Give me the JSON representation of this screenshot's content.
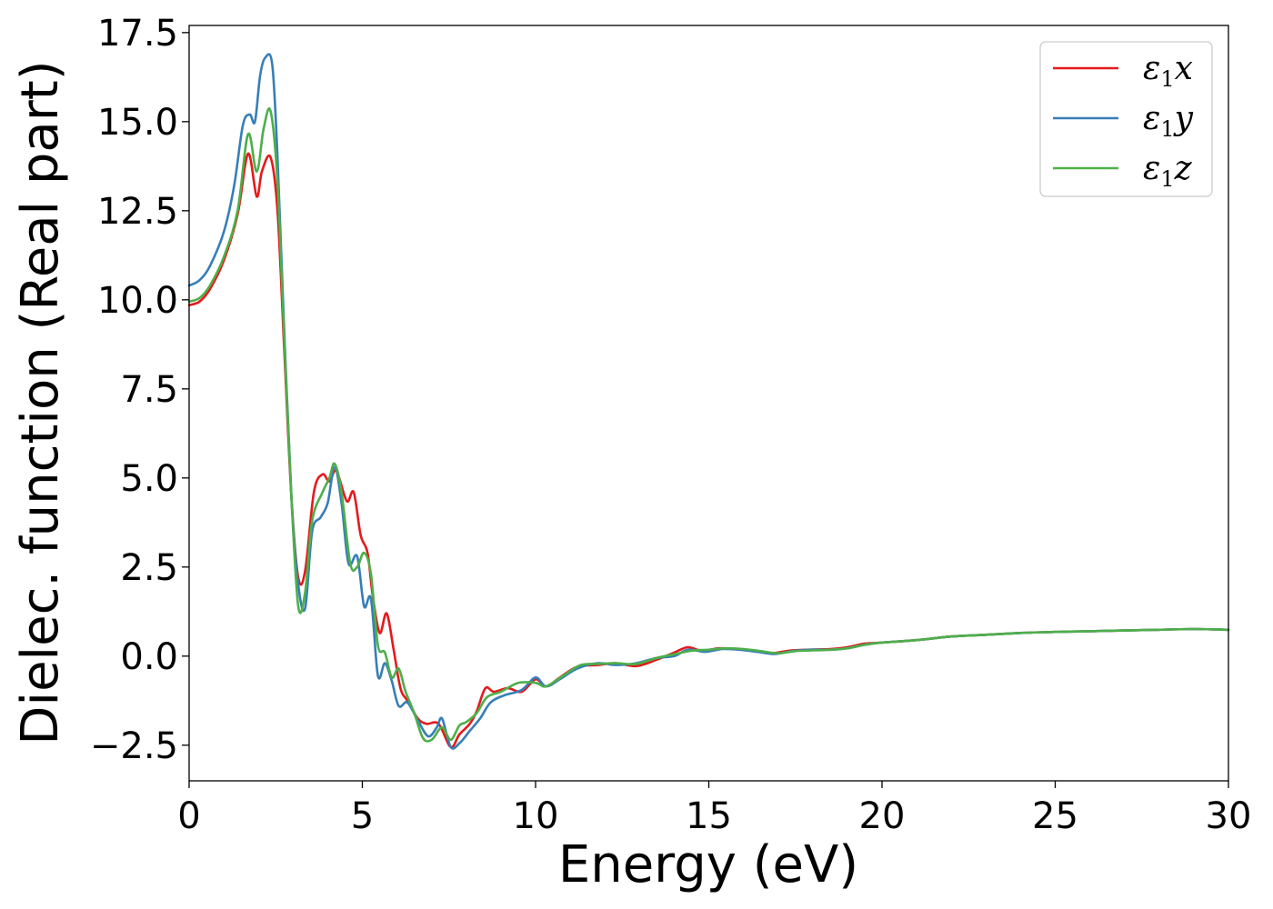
{
  "chart_data": {
    "type": "line",
    "title": "",
    "xlabel": "Energy (eV)",
    "ylabel": "Dielec. function (Real part)",
    "xlim": [
      0,
      30
    ],
    "ylim": [
      -3.5,
      17.7
    ],
    "xticks": [
      0,
      5,
      10,
      15,
      20,
      25,
      30
    ],
    "xtick_labels": [
      "0",
      "5",
      "10",
      "15",
      "20",
      "25",
      "30"
    ],
    "yticks": [
      -2.5,
      0.0,
      2.5,
      5.0,
      7.5,
      10.0,
      12.5,
      15.0,
      17.5
    ],
    "ytick_labels": [
      "−2.5",
      "0.0",
      "2.5",
      "5.0",
      "7.5",
      "10.0",
      "12.5",
      "15.0",
      "17.5"
    ],
    "grid": false,
    "legend": "top-right",
    "series": [
      {
        "name": "ε1x",
        "legend_base": "ε",
        "legend_sub": "1",
        "legend_tail": "x",
        "color": "#e41a1c",
        "points": [
          [
            0,
            9.85
          ],
          [
            0.3,
            9.95
          ],
          [
            0.6,
            10.3
          ],
          [
            1.0,
            11.1
          ],
          [
            1.4,
            12.4
          ],
          [
            1.7,
            14.1
          ],
          [
            1.95,
            12.9
          ],
          [
            2.1,
            13.6
          ],
          [
            2.35,
            14.0
          ],
          [
            2.55,
            12.5
          ],
          [
            2.75,
            8.5
          ],
          [
            2.95,
            4.5
          ],
          [
            3.15,
            2.2
          ],
          [
            3.35,
            2.4
          ],
          [
            3.6,
            4.6
          ],
          [
            3.85,
            5.1
          ],
          [
            4.05,
            4.9
          ],
          [
            4.25,
            5.2
          ],
          [
            4.55,
            4.35
          ],
          [
            4.75,
            4.6
          ],
          [
            4.95,
            3.4
          ],
          [
            5.15,
            2.9
          ],
          [
            5.3,
            1.7
          ],
          [
            5.5,
            0.65
          ],
          [
            5.7,
            1.2
          ],
          [
            5.9,
            0.2
          ],
          [
            6.1,
            -0.9
          ],
          [
            6.3,
            -1.25
          ],
          [
            6.6,
            -1.75
          ],
          [
            6.85,
            -1.9
          ],
          [
            7.2,
            -1.9
          ],
          [
            7.55,
            -2.55
          ],
          [
            7.8,
            -2.2
          ],
          [
            8.1,
            -1.9
          ],
          [
            8.3,
            -1.55
          ],
          [
            8.55,
            -0.9
          ],
          [
            8.8,
            -1.0
          ],
          [
            9.2,
            -0.9
          ],
          [
            9.6,
            -1.0
          ],
          [
            10.0,
            -0.65
          ],
          [
            10.3,
            -0.85
          ],
          [
            10.7,
            -0.6
          ],
          [
            11.2,
            -0.3
          ],
          [
            11.8,
            -0.25
          ],
          [
            12.3,
            -0.2
          ],
          [
            12.9,
            -0.28
          ],
          [
            13.5,
            -0.1
          ],
          [
            14.0,
            0.1
          ],
          [
            14.4,
            0.25
          ],
          [
            14.8,
            0.15
          ],
          [
            15.3,
            0.22
          ],
          [
            15.8,
            0.2
          ],
          [
            16.3,
            0.15
          ],
          [
            16.8,
            0.08
          ],
          [
            17.3,
            0.15
          ],
          [
            17.8,
            0.18
          ],
          [
            18.5,
            0.2
          ],
          [
            19.0,
            0.25
          ],
          [
            19.5,
            0.35
          ],
          [
            20.0,
            0.38
          ],
          [
            21.0,
            0.45
          ],
          [
            22.0,
            0.55
          ],
          [
            23.0,
            0.6
          ],
          [
            24.0,
            0.65
          ],
          [
            25.0,
            0.68
          ],
          [
            26.0,
            0.7
          ],
          [
            27.0,
            0.72
          ],
          [
            28.0,
            0.74
          ],
          [
            29.0,
            0.76
          ],
          [
            30.0,
            0.74
          ]
        ]
      },
      {
        "name": "ε1y",
        "legend_base": "ε",
        "legend_sub": "1",
        "legend_tail": "y",
        "color": "#377eb8",
        "points": [
          [
            0,
            10.4
          ],
          [
            0.3,
            10.55
          ],
          [
            0.6,
            10.95
          ],
          [
            1.0,
            11.9
          ],
          [
            1.3,
            13.2
          ],
          [
            1.55,
            14.9
          ],
          [
            1.75,
            15.2
          ],
          [
            1.9,
            15.0
          ],
          [
            2.05,
            16.3
          ],
          [
            2.2,
            16.8
          ],
          [
            2.4,
            16.6
          ],
          [
            2.55,
            14.0
          ],
          [
            2.75,
            9.0
          ],
          [
            2.95,
            4.5
          ],
          [
            3.15,
            2.0
          ],
          [
            3.35,
            1.35
          ],
          [
            3.55,
            3.5
          ],
          [
            3.8,
            3.9
          ],
          [
            4.0,
            4.3
          ],
          [
            4.2,
            5.3
          ],
          [
            4.4,
            4.3
          ],
          [
            4.6,
            2.6
          ],
          [
            4.85,
            2.8
          ],
          [
            5.05,
            1.4
          ],
          [
            5.25,
            1.6
          ],
          [
            5.45,
            -0.55
          ],
          [
            5.65,
            -0.2
          ],
          [
            5.85,
            -0.7
          ],
          [
            6.05,
            -1.4
          ],
          [
            6.3,
            -1.3
          ],
          [
            6.6,
            -1.8
          ],
          [
            6.9,
            -2.25
          ],
          [
            7.15,
            -2.0
          ],
          [
            7.3,
            -1.75
          ],
          [
            7.55,
            -2.55
          ],
          [
            7.8,
            -2.45
          ],
          [
            8.1,
            -2.1
          ],
          [
            8.4,
            -1.75
          ],
          [
            8.7,
            -1.3
          ],
          [
            9.1,
            -1.1
          ],
          [
            9.6,
            -0.95
          ],
          [
            10.0,
            -0.6
          ],
          [
            10.3,
            -0.85
          ],
          [
            10.7,
            -0.65
          ],
          [
            11.2,
            -0.35
          ],
          [
            11.8,
            -0.2
          ],
          [
            12.3,
            -0.25
          ],
          [
            12.9,
            -0.2
          ],
          [
            13.5,
            -0.05
          ],
          [
            14.0,
            0.0
          ],
          [
            14.4,
            0.18
          ],
          [
            14.9,
            0.12
          ],
          [
            15.4,
            0.2
          ],
          [
            15.9,
            0.18
          ],
          [
            16.4,
            0.12
          ],
          [
            16.9,
            0.06
          ],
          [
            17.4,
            0.14
          ],
          [
            17.9,
            0.18
          ],
          [
            18.5,
            0.18
          ],
          [
            19.0,
            0.22
          ],
          [
            19.5,
            0.32
          ],
          [
            20.0,
            0.38
          ],
          [
            21.0,
            0.45
          ],
          [
            22.0,
            0.55
          ],
          [
            23.0,
            0.6
          ],
          [
            24.0,
            0.65
          ],
          [
            25.0,
            0.68
          ],
          [
            26.0,
            0.7
          ],
          [
            27.0,
            0.72
          ],
          [
            28.0,
            0.74
          ],
          [
            29.0,
            0.76
          ],
          [
            30.0,
            0.74
          ]
        ]
      },
      {
        "name": "ε1z",
        "legend_base": "ε",
        "legend_sub": "1",
        "legend_tail": "z",
        "color": "#4daf4a",
        "points": [
          [
            0,
            9.95
          ],
          [
            0.3,
            10.05
          ],
          [
            0.6,
            10.4
          ],
          [
            1.0,
            11.2
          ],
          [
            1.4,
            12.5
          ],
          [
            1.7,
            14.65
          ],
          [
            1.95,
            13.6
          ],
          [
            2.15,
            14.8
          ],
          [
            2.35,
            15.3
          ],
          [
            2.55,
            13.3
          ],
          [
            2.75,
            8.8
          ],
          [
            2.95,
            4.5
          ],
          [
            3.15,
            1.4
          ],
          [
            3.35,
            1.8
          ],
          [
            3.55,
            3.8
          ],
          [
            3.85,
            4.6
          ],
          [
            4.05,
            5.0
          ],
          [
            4.2,
            5.4
          ],
          [
            4.4,
            4.6
          ],
          [
            4.65,
            2.6
          ],
          [
            4.85,
            2.5
          ],
          [
            5.05,
            2.9
          ],
          [
            5.25,
            2.3
          ],
          [
            5.45,
            0.3
          ],
          [
            5.65,
            0.1
          ],
          [
            5.85,
            -0.6
          ],
          [
            6.05,
            -0.35
          ],
          [
            6.25,
            -1.0
          ],
          [
            6.5,
            -1.6
          ],
          [
            6.75,
            -2.3
          ],
          [
            7.0,
            -2.35
          ],
          [
            7.3,
            -2.0
          ],
          [
            7.55,
            -2.35
          ],
          [
            7.8,
            -1.95
          ],
          [
            8.0,
            -1.85
          ],
          [
            8.3,
            -1.6
          ],
          [
            8.6,
            -1.15
          ],
          [
            9.0,
            -1.0
          ],
          [
            9.5,
            -0.75
          ],
          [
            10.0,
            -0.75
          ],
          [
            10.3,
            -0.85
          ],
          [
            10.8,
            -0.55
          ],
          [
            11.3,
            -0.25
          ],
          [
            11.8,
            -0.22
          ],
          [
            12.3,
            -0.2
          ],
          [
            12.9,
            -0.22
          ],
          [
            13.5,
            -0.05
          ],
          [
            14.0,
            0.05
          ],
          [
            14.5,
            0.15
          ],
          [
            15.0,
            0.18
          ],
          [
            15.5,
            0.22
          ],
          [
            16.0,
            0.2
          ],
          [
            16.5,
            0.14
          ],
          [
            17.0,
            0.08
          ],
          [
            17.5,
            0.14
          ],
          [
            18.0,
            0.16
          ],
          [
            18.5,
            0.18
          ],
          [
            19.0,
            0.22
          ],
          [
            19.5,
            0.32
          ],
          [
            20.0,
            0.38
          ],
          [
            21.0,
            0.45
          ],
          [
            22.0,
            0.55
          ],
          [
            23.0,
            0.6
          ],
          [
            24.0,
            0.65
          ],
          [
            25.0,
            0.68
          ],
          [
            26.0,
            0.7
          ],
          [
            27.0,
            0.72
          ],
          [
            28.0,
            0.74
          ],
          [
            29.0,
            0.76
          ],
          [
            30.0,
            0.74
          ]
        ]
      }
    ]
  }
}
